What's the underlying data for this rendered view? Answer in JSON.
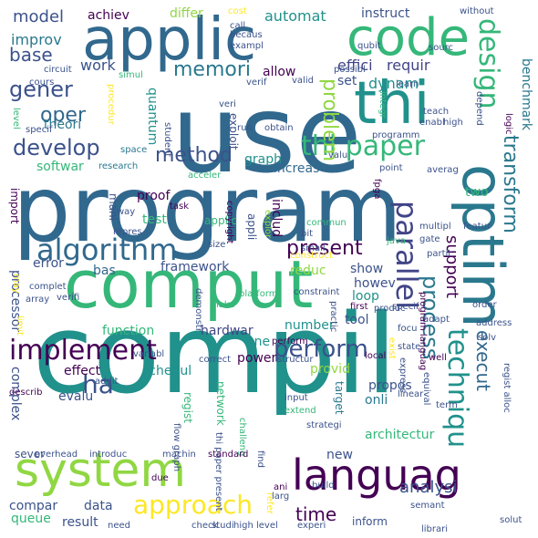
{
  "palette": {
    "purple": "#440154",
    "indigo": "#3b528b",
    "blue": "#31688e",
    "teal": "#21918c",
    "green": "#35b779",
    "lime": "#90d743",
    "yellow": "#fde725",
    "slate": "#414487",
    "sea": "#2a788e"
  },
  "words": [
    {
      "text": "use",
      "color": "#31688e"
    },
    {
      "text": "program",
      "color": "#31688e"
    },
    {
      "text": "compil",
      "color": "#21918c"
    },
    {
      "text": "comput",
      "color": "#35b779"
    },
    {
      "text": "applic",
      "color": "#31688e"
    },
    {
      "text": "code",
      "color": "#35b779"
    },
    {
      "text": "thi",
      "color": "#21918c"
    },
    {
      "text": "system",
      "color": "#90d743"
    },
    {
      "text": "languag",
      "color": "#440154"
    },
    {
      "text": "optim",
      "color": "#2a788e"
    },
    {
      "text": "algorithm",
      "color": "#31688e"
    },
    {
      "text": "implement",
      "color": "#440154"
    },
    {
      "text": "parallel",
      "color": "#414487"
    },
    {
      "text": "techniqu",
      "color": "#21918c"
    },
    {
      "text": "design",
      "color": "#35b779"
    },
    {
      "text": "thi paper",
      "color": "#35b779"
    },
    {
      "text": "perform",
      "color": "#3b528b"
    },
    {
      "text": "approach",
      "color": "#fde725"
    },
    {
      "text": "memori",
      "color": "#2a788e"
    },
    {
      "text": "process",
      "color": "#2a788e"
    },
    {
      "text": "ha",
      "color": "#3b528b"
    },
    {
      "text": "develop",
      "color": "#3b528b"
    },
    {
      "text": "method",
      "color": "#3b528b"
    },
    {
      "text": "problem",
      "color": "#90d743"
    },
    {
      "text": "transform",
      "color": "#2a788e"
    },
    {
      "text": "gener",
      "color": "#3b528b"
    },
    {
      "text": "oper",
      "color": "#31688e"
    },
    {
      "text": "base",
      "color": "#3b528b"
    },
    {
      "text": "model",
      "color": "#3b528b"
    },
    {
      "text": "execut",
      "color": "#31688e"
    },
    {
      "text": "time",
      "color": "#440154"
    },
    {
      "text": "present",
      "color": "#440154"
    },
    {
      "text": "analysi",
      "color": "#3b528b"
    },
    {
      "text": "support",
      "color": "#440154"
    },
    {
      "text": "improv",
      "color": "#2a788e"
    },
    {
      "text": "work",
      "color": "#3b528b"
    },
    {
      "text": "achiev",
      "color": "#440154"
    },
    {
      "text": "differ",
      "color": "#90d743"
    },
    {
      "text": "automat",
      "color": "#21918c"
    },
    {
      "text": "instruct",
      "color": "#3b528b"
    },
    {
      "text": "effici",
      "color": "#414487"
    },
    {
      "text": "requir",
      "color": "#414487"
    },
    {
      "text": "allow",
      "color": "#440154"
    },
    {
      "text": "set",
      "color": "#3b528b"
    },
    {
      "text": "dynam",
      "color": "#21918c"
    },
    {
      "text": "theori",
      "color": "#2a788e"
    },
    {
      "text": "quantum",
      "color": "#21918c"
    },
    {
      "text": "benchmark",
      "color": "#2a788e"
    },
    {
      "text": "softwar",
      "color": "#35b779"
    },
    {
      "text": "graph",
      "color": "#21918c"
    },
    {
      "text": "increas",
      "color": "#31688e"
    },
    {
      "text": "two",
      "color": "#35b779"
    },
    {
      "text": "proof",
      "color": "#440154"
    },
    {
      "text": "test",
      "color": "#35b779"
    },
    {
      "text": "mani",
      "color": "#3b528b"
    },
    {
      "text": "error",
      "color": "#3b528b"
    },
    {
      "text": "framework",
      "color": "#3b528b"
    },
    {
      "text": "includ",
      "color": "#440154"
    },
    {
      "text": "reduc",
      "color": "#90d743"
    },
    {
      "text": "show",
      "color": "#3b528b"
    },
    {
      "text": "howev",
      "color": "#3b528b"
    },
    {
      "text": "loop",
      "color": "#21918c"
    },
    {
      "text": "tool",
      "color": "#3b528b"
    },
    {
      "text": "processor",
      "color": "#3b528b"
    },
    {
      "text": "bas",
      "color": "#31688e"
    },
    {
      "text": "function",
      "color": "#35b779"
    },
    {
      "text": "hardwar",
      "color": "#414487"
    },
    {
      "text": "number",
      "color": "#21918c"
    },
    {
      "text": "one",
      "color": "#21918c"
    },
    {
      "text": "power",
      "color": "#440154"
    },
    {
      "text": "effect",
      "color": "#440154"
    },
    {
      "text": "schedul",
      "color": "#21918c"
    },
    {
      "text": "provid",
      "color": "#90d743"
    },
    {
      "text": "propos",
      "color": "#3b528b"
    },
    {
      "text": "onli",
      "color": "#2a788e"
    },
    {
      "text": "target",
      "color": "#2a788e"
    },
    {
      "text": "evalu",
      "color": "#3b528b"
    },
    {
      "text": "complex",
      "color": "#3b528b"
    },
    {
      "text": "architectur",
      "color": "#35b779"
    },
    {
      "text": "new",
      "color": "#3b528b"
    },
    {
      "text": "data",
      "color": "#3b528b"
    },
    {
      "text": "result",
      "color": "#3b528b"
    },
    {
      "text": "inform",
      "color": "#3b528b"
    },
    {
      "text": "compar",
      "color": "#3b528b"
    },
    {
      "text": "queue",
      "color": "#35b779"
    },
    {
      "text": "sever",
      "color": "#3b528b"
    },
    {
      "text": "regist",
      "color": "#35b779"
    },
    {
      "text": "network",
      "color": "#35b779"
    },
    {
      "text": "applic",
      "color": "#35b779"
    },
    {
      "text": "import",
      "color": "#440154"
    },
    {
      "text": "research",
      "color": "#2a788e"
    },
    {
      "text": "acceler",
      "color": "#35b779"
    },
    {
      "text": "space",
      "color": "#2a788e"
    },
    {
      "text": "student",
      "color": "#3b528b"
    },
    {
      "text": "exploit",
      "color": "#3b528b"
    },
    {
      "text": "obtain",
      "color": "#3b528b"
    },
    {
      "text": "valu",
      "color": "#3b528b"
    },
    {
      "text": "point",
      "color": "#3b528b"
    },
    {
      "text": "averag",
      "color": "#3b528b"
    },
    {
      "text": "logic",
      "color": "#440154"
    },
    {
      "text": "featur",
      "color": "#3b528b"
    },
    {
      "text": "copyright",
      "color": "#440154"
    },
    {
      "text": "task",
      "color": "#440154"
    },
    {
      "text": "commun",
      "color": "#35b779"
    },
    {
      "text": "fpga",
      "color": "#440154"
    },
    {
      "text": "java",
      "color": "#35b779"
    },
    {
      "text": "multipl",
      "color": "#3b528b"
    },
    {
      "text": "gate",
      "color": "#3b528b"
    },
    {
      "text": "partit",
      "color": "#3b528b"
    },
    {
      "text": "size",
      "color": "#3b528b"
    },
    {
      "text": "explor",
      "color": "#90d743"
    },
    {
      "text": "construct",
      "color": "#fde725"
    },
    {
      "text": "bit",
      "color": "#3b528b"
    },
    {
      "text": "small",
      "color": "#3b528b"
    },
    {
      "text": "way",
      "color": "#3b528b"
    },
    {
      "text": "repres",
      "color": "#3b528b"
    },
    {
      "text": "verifi",
      "color": "#3b528b"
    },
    {
      "text": "complet",
      "color": "#3b528b"
    },
    {
      "text": "array",
      "color": "#3b528b"
    },
    {
      "text": "make",
      "color": "#35b779"
    },
    {
      "text": "practic",
      "color": "#3b528b"
    },
    {
      "text": "first",
      "color": "#440154"
    },
    {
      "text": "produc",
      "color": "#3b528b"
    },
    {
      "text": "specif",
      "color": "#3b528b"
    },
    {
      "text": "order",
      "color": "#3b528b"
    },
    {
      "text": "adapt",
      "color": "#3b528b"
    },
    {
      "text": "address",
      "color": "#3b528b"
    },
    {
      "text": "program languag",
      "color": "#440154"
    },
    {
      "text": "constraint",
      "color": "#3b528b"
    },
    {
      "text": "platform",
      "color": "#35b779"
    },
    {
      "text": "demonstr",
      "color": "#3b528b"
    },
    {
      "text": "variabl",
      "color": "#3b528b"
    },
    {
      "text": "correct",
      "color": "#3b528b"
    },
    {
      "text": "structur",
      "color": "#3b528b"
    },
    {
      "text": "local",
      "color": "#440154"
    },
    {
      "text": "state",
      "color": "#3b528b"
    },
    {
      "text": "well",
      "color": "#440154"
    },
    {
      "text": "focu",
      "color": "#3b528b"
    },
    {
      "text": "solv",
      "color": "#3b528b"
    },
    {
      "text": "exist",
      "color": "#fde725"
    },
    {
      "text": "express",
      "color": "#3b528b"
    },
    {
      "text": "equival",
      "color": "#3b528b"
    },
    {
      "text": "linear",
      "color": "#3b528b"
    },
    {
      "text": "term",
      "color": "#3b528b"
    },
    {
      "text": "regist alloc",
      "color": "#3b528b"
    },
    {
      "text": "input",
      "color": "#3b528b"
    },
    {
      "text": "extend",
      "color": "#35b779"
    },
    {
      "text": "strategi",
      "color": "#3b528b"
    },
    {
      "text": "describ",
      "color": "#440154"
    },
    {
      "text": "addit",
      "color": "#3b528b"
    },
    {
      "text": "flow graph",
      "color": "#3b528b"
    },
    {
      "text": "thi paper present",
      "color": "#3b528b"
    },
    {
      "text": "challeng",
      "color": "#35b779"
    },
    {
      "text": "overhead",
      "color": "#3b528b"
    },
    {
      "text": "introduc",
      "color": "#3b528b"
    },
    {
      "text": "machin",
      "color": "#3b528b"
    },
    {
      "text": "standard",
      "color": "#440154"
    },
    {
      "text": "find",
      "color": "#3b528b"
    },
    {
      "text": "ani",
      "color": "#440154"
    },
    {
      "text": "build",
      "color": "#3b528b"
    },
    {
      "text": "larg",
      "color": "#3b528b"
    },
    {
      "text": "refer",
      "color": "#fde725"
    },
    {
      "text": "due",
      "color": "#440154"
    },
    {
      "text": "semant",
      "color": "#3b528b"
    },
    {
      "text": "experi",
      "color": "#3b528b"
    },
    {
      "text": "need",
      "color": "#3b528b"
    },
    {
      "text": "check",
      "color": "#3b528b"
    },
    {
      "text": "studi",
      "color": "#3b528b"
    },
    {
      "text": "high level",
      "color": "#3b528b"
    },
    {
      "text": "librari",
      "color": "#3b528b"
    },
    {
      "text": "solut",
      "color": "#3b528b"
    },
    {
      "text": "limit",
      "color": "#fde725"
    },
    {
      "text": "may",
      "color": "#fde725"
    },
    {
      "text": "level",
      "color": "#35b779"
    },
    {
      "text": "specif",
      "color": "#3b528b"
    },
    {
      "text": "cours",
      "color": "#3b528b"
    },
    {
      "text": "circuit",
      "color": "#3b528b"
    },
    {
      "text": "simul",
      "color": "#35b779"
    },
    {
      "text": "procedur",
      "color": "#fde725"
    },
    {
      "text": "veri",
      "color": "#3b528b"
    },
    {
      "text": "run",
      "color": "#3b528b"
    },
    {
      "text": "verif",
      "color": "#3b528b"
    },
    {
      "text": "valid",
      "color": "#3b528b"
    },
    {
      "text": "cost",
      "color": "#fde725"
    },
    {
      "text": "call",
      "color": "#3b528b"
    },
    {
      "text": "becaus",
      "color": "#3b528b"
    },
    {
      "text": "exampl",
      "color": "#3b528b"
    },
    {
      "text": "qubit",
      "color": "#3b528b"
    },
    {
      "text": "possibl",
      "color": "#3b528b"
    },
    {
      "text": "sourc",
      "color": "#3b528b"
    },
    {
      "text": "learn",
      "color": "#3b528b"
    },
    {
      "text": "integr",
      "color": "#35b779"
    },
    {
      "text": "programm",
      "color": "#3b528b"
    },
    {
      "text": "depend",
      "color": "#3b528b"
    },
    {
      "text": "teach",
      "color": "#3b528b"
    },
    {
      "text": "enabl",
      "color": "#3b528b"
    },
    {
      "text": "high",
      "color": "#3b528b"
    },
    {
      "text": "without",
      "color": "#3b528b"
    },
    {
      "text": "appli",
      "color": "#3b528b"
    },
    {
      "text": "perform",
      "color": "#440154"
    }
  ]
}
